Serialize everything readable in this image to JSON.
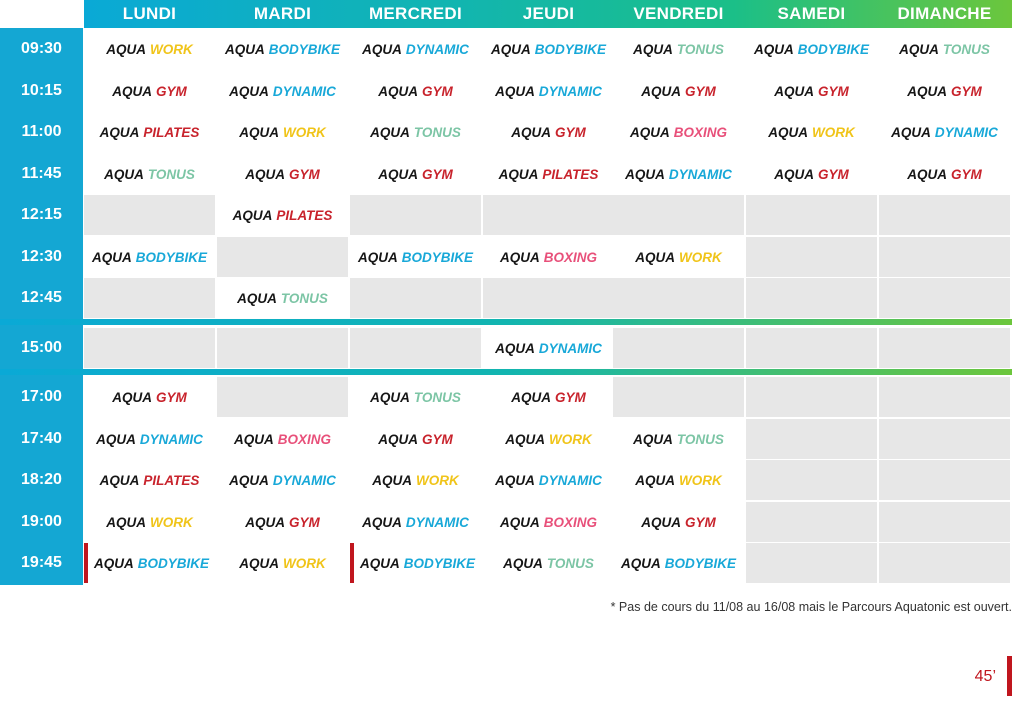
{
  "days": [
    "LUNDI",
    "MARDI",
    "MERCREDI",
    "JEUDI",
    "VENDREDI",
    "SAMEDI",
    "DIMANCHE"
  ],
  "times": [
    "09:30",
    "10:15",
    "11:00",
    "11:45",
    "12:15",
    "12:30",
    "12:45",
    "15:00",
    "17:00",
    "17:40",
    "18:20",
    "19:00",
    "19:45"
  ],
  "prefix": "AQUA",
  "course_colors": {
    "WORK": "#f0c419",
    "BODYBIKE": "#18a8d8",
    "DYNAMIC": "#18a8d8",
    "TONUS": "#7cc5a5",
    "GYM": "#c8232c",
    "PILATES": "#c8232c",
    "BOXING": "#e8507a"
  },
  "grid": [
    [
      "WORK",
      "BODYBIKE",
      "DYNAMIC",
      "BODYBIKE",
      "TONUS",
      "BODYBIKE",
      "TONUS"
    ],
    [
      "GYM",
      "DYNAMIC",
      "GYM",
      "DYNAMIC",
      "GYM",
      "GYM",
      "GYM"
    ],
    [
      "PILATES",
      "WORK",
      "TONUS",
      "GYM",
      "BOXING",
      "WORK",
      "DYNAMIC"
    ],
    [
      "TONUS",
      "GYM",
      "GYM",
      "PILATES",
      "DYNAMIC",
      "GYM",
      "GYM"
    ],
    [
      "",
      "PILATES",
      "",
      "",
      "",
      "",
      ""
    ],
    [
      "BODYBIKE",
      "",
      "BODYBIKE",
      "BOXING",
      "WORK",
      "",
      ""
    ],
    [
      "",
      "TONUS",
      "",
      "",
      "",
      "",
      ""
    ],
    [
      "",
      "",
      "",
      "DYNAMIC",
      "",
      "",
      ""
    ],
    [
      "GYM",
      "",
      "TONUS",
      "GYM",
      "",
      "",
      ""
    ],
    [
      "DYNAMIC",
      "BOXING",
      "GYM",
      "WORK",
      "TONUS",
      "",
      ""
    ],
    [
      "PILATES",
      "DYNAMIC",
      "WORK",
      "DYNAMIC",
      "WORK",
      "",
      ""
    ],
    [
      "WORK",
      "GYM",
      "DYNAMIC",
      "BOXING",
      "GYM",
      "",
      ""
    ],
    [
      "BODYBIKE",
      "WORK",
      "BODYBIKE",
      "TONUS",
      "BODYBIKE",
      "",
      ""
    ]
  ],
  "marked_cells": [
    [
      12,
      0
    ],
    [
      12,
      2
    ]
  ],
  "footnote": "* Pas de cours du 11/08 au 16/08 mais le Parcours Aquatonic est ouvert.",
  "page_number": "45’",
  "colors": {
    "time_column": "#14a7d3",
    "header_start": "#0aa9d6",
    "header_end": "#6cc63c",
    "empty_cell": "#e7e7e7",
    "accent_red": "#c0161e"
  }
}
